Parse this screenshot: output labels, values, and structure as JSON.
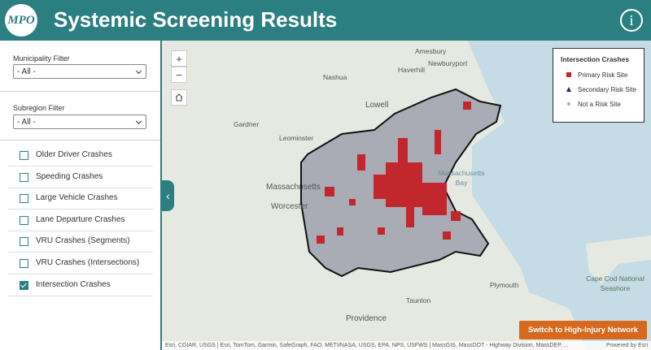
{
  "header": {
    "logo": "MPO",
    "title": "Systemic Screening Results",
    "info_icon": "i"
  },
  "filters": [
    {
      "label": "Municipality Filter",
      "value": "- All -"
    },
    {
      "label": "Subregion Filter",
      "value": "- All -"
    }
  ],
  "layers": [
    {
      "label": "Older Driver Crashes",
      "checked": false
    },
    {
      "label": "Speeding Crashes",
      "checked": false
    },
    {
      "label": "Large Vehicle Crashes",
      "checked": false
    },
    {
      "label": "Lane Departure Crashes",
      "checked": false
    },
    {
      "label": "VRU Crashes (Segments)",
      "checked": false
    },
    {
      "label": "VRU Crashes (Intersections)",
      "checked": false
    },
    {
      "label": "Intersection Crashes",
      "checked": true
    }
  ],
  "map": {
    "zoom_controls": [
      "+",
      "−"
    ],
    "place_labels": [
      "Amesbury",
      "Newburyport",
      "Haverhill",
      "Nashua",
      "Lowell",
      "Gardner",
      "Leominster",
      "Massachusetts",
      "Worcester",
      "Massachusetts",
      "Bay",
      "Plymouth",
      "Taunton",
      "Providence",
      "Cape Cod National",
      "Seashore"
    ],
    "legend": {
      "title": "Intersection Crashes",
      "items": [
        "Primary Risk Site",
        "Secondary Risk Site",
        "Not a Risk Site"
      ]
    },
    "attribution": "Esri, CGIAR, USGS | Esri, TomTom, Garmin, SafeGraph, FAO, METI/NASA, USGS, EPA, NPS, USFWS | MassGIS, MassDOT - Highway Division, MassDEP, ...",
    "powered_by": "Powered by Esri",
    "button": "Switch to High-Injury Network"
  }
}
